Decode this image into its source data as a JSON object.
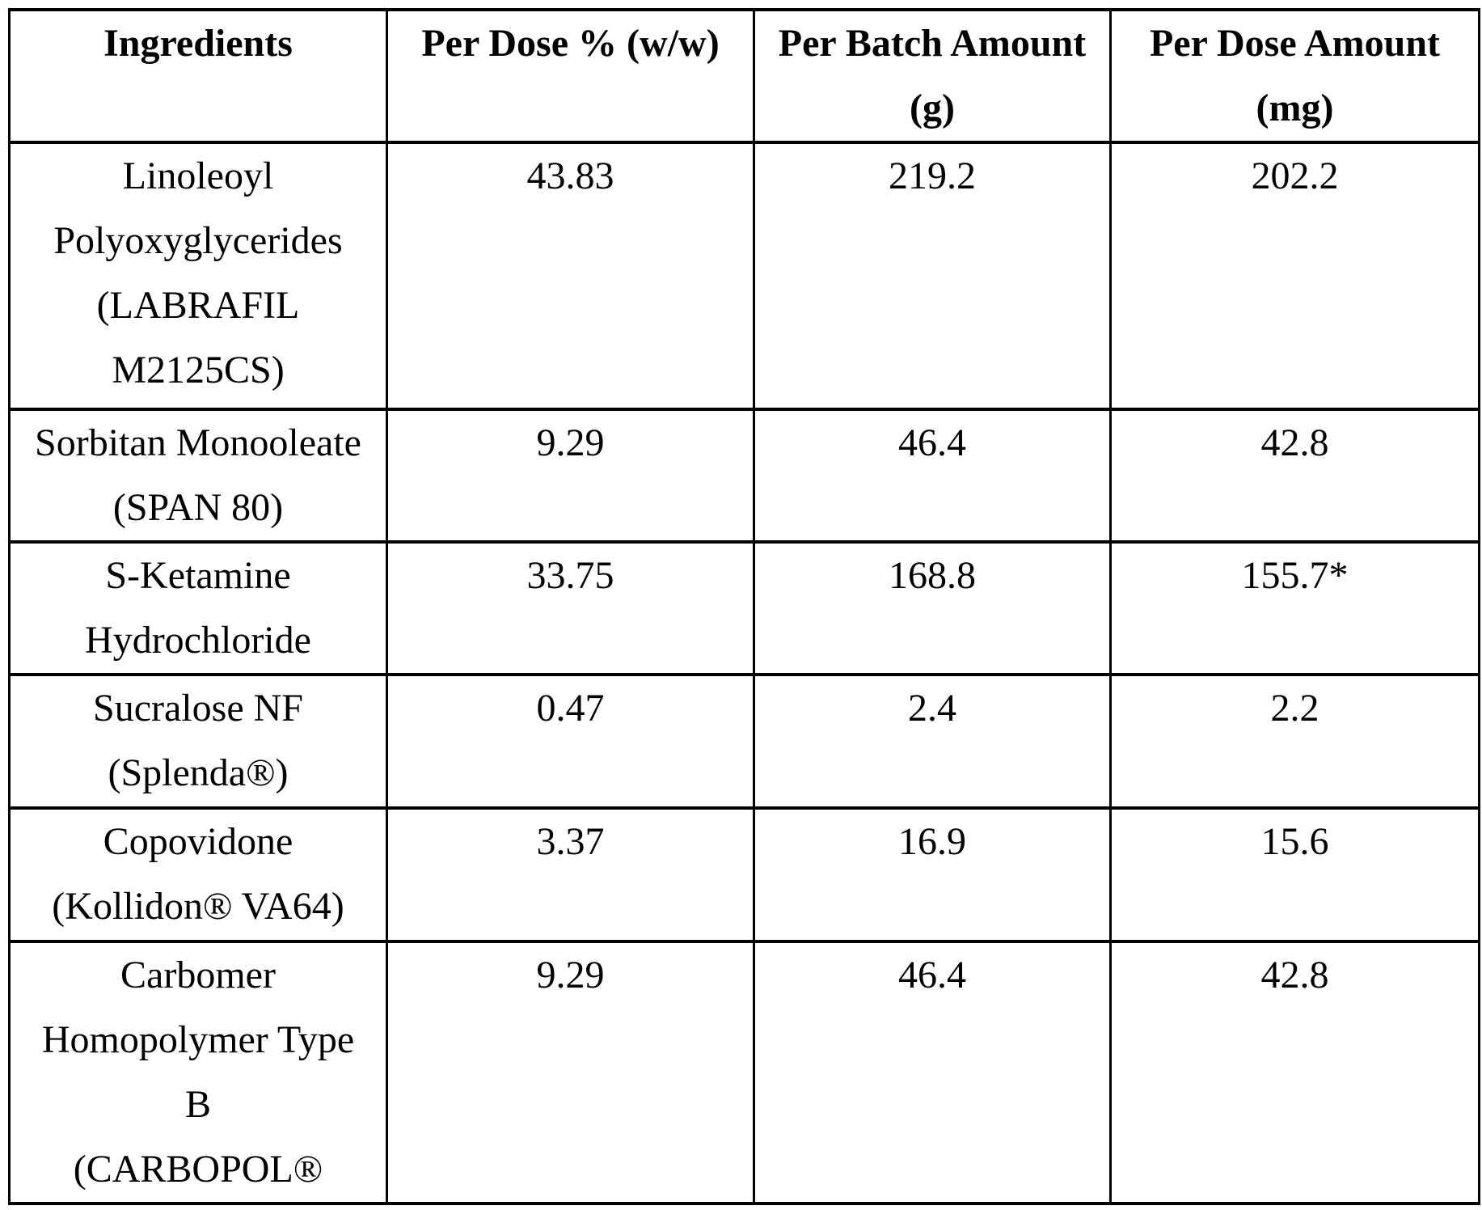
{
  "table": {
    "headers": [
      {
        "lines": [
          "Ingredients"
        ]
      },
      {
        "lines": [
          "Per Dose % (w/w)"
        ]
      },
      {
        "lines": [
          "Per Batch Amount",
          "(g)"
        ]
      },
      {
        "lines": [
          "Per Dose Amount",
          "(mg)"
        ]
      }
    ],
    "rows": [
      {
        "ingredient": [
          "Linoleoyl",
          "Polyoxyglycerides",
          "(LABRAFIL",
          "M2125CS)"
        ],
        "per_dose_pct": "43.83",
        "per_batch_g": "219.2",
        "per_dose_mg": "202.2"
      },
      {
        "ingredient": [
          "Sorbitan Monooleate",
          "(SPAN 80)"
        ],
        "per_dose_pct": "9.29",
        "per_batch_g": "46.4",
        "per_dose_mg": "42.8"
      },
      {
        "ingredient": [
          "S-Ketamine",
          "Hydrochloride"
        ],
        "per_dose_pct": "33.75",
        "per_batch_g": "168.8",
        "per_dose_mg": "155.7*"
      },
      {
        "ingredient": [
          "Sucralose NF",
          "(Splenda®)"
        ],
        "per_dose_pct": "0.47",
        "per_batch_g": "2.4",
        "per_dose_mg": "2.2"
      },
      {
        "ingredient": [
          "Copovidone",
          "(Kollidon® VA64)"
        ],
        "per_dose_pct": "3.37",
        "per_batch_g": "16.9",
        "per_dose_mg": "15.6"
      },
      {
        "ingredient": [
          "Carbomer",
          "Homopolymer Type",
          "B",
          "(CARBOPOL®"
        ],
        "per_dose_pct": "9.29",
        "per_batch_g": "46.4",
        "per_dose_mg": "42.8"
      }
    ]
  }
}
